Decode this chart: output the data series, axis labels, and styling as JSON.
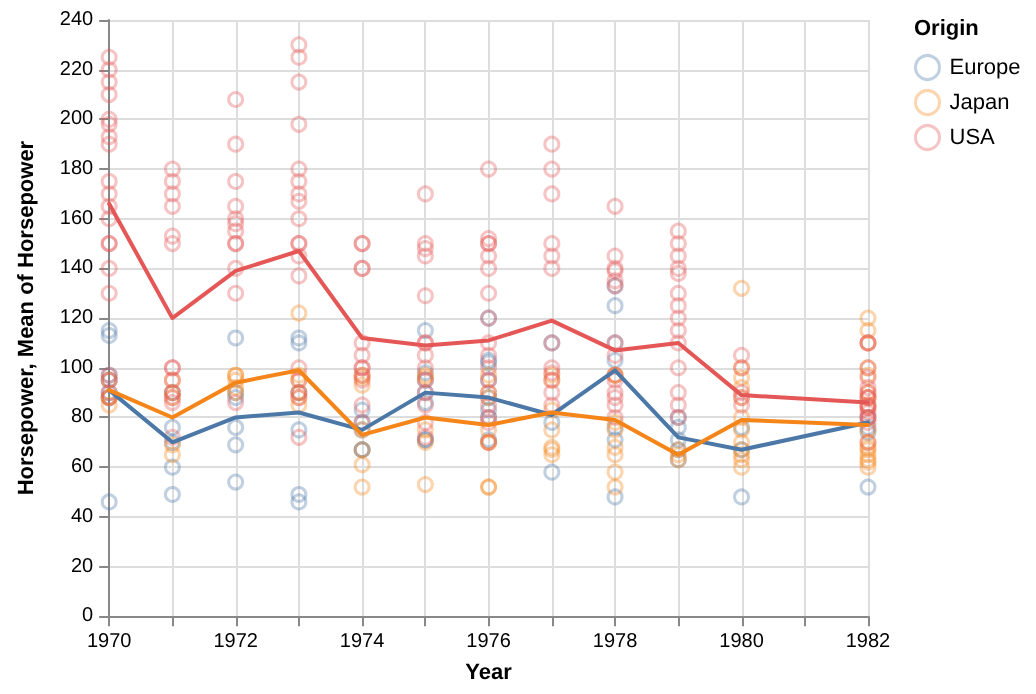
{
  "chart_data": {
    "type": "scatter",
    "xlabel": "Year",
    "ylabel": "Horsepower, Mean of Horsepower",
    "legend_title": "Origin",
    "legend": "right",
    "grid": true,
    "marker": "circle",
    "xlim": [
      1970,
      1982
    ],
    "ylim": [
      0,
      240
    ],
    "xticks": [
      1970,
      {
        "value": 1971,
        "label": null
      },
      1972,
      {
        "value": 1973,
        "label": null
      },
      1974,
      {
        "value": 1975,
        "label": null
      },
      1976,
      {
        "value": 1977,
        "label": null
      },
      1978,
      {
        "value": 1979,
        "label": null
      },
      {
        "value": 1980,
        "label": "1980"
      },
      {
        "value": 1981,
        "label": null
      },
      1982
    ],
    "yticks": [
      0,
      20,
      40,
      60,
      80,
      100,
      120,
      140,
      160,
      180,
      200,
      220,
      240
    ],
    "series": [
      {
        "name": "Europe",
        "color": "#4c78a8",
        "x": [
          1970,
          1970,
          1970,
          1970,
          1970,
          1970,
          1970,
          1971,
          1971,
          1971,
          1971,
          1971,
          1972,
          1972,
          1972,
          1972,
          1972,
          1972,
          1973,
          1973,
          1973,
          1973,
          1973,
          1973,
          1974,
          1974,
          1974,
          1974,
          1974,
          1975,
          1975,
          1975,
          1975,
          1975,
          1975,
          1975,
          1976,
          1976,
          1976,
          1976,
          1976,
          1976,
          1976,
          1976,
          1977,
          1977,
          1977,
          1978,
          1978,
          1978,
          1978,
          1978,
          1978,
          1978,
          1979,
          1979,
          1979,
          1979,
          1979,
          1980,
          1980,
          1980,
          1982,
          1982,
          1982,
          1982
        ],
        "values": [
          115,
          113,
          97,
          95,
          90,
          88,
          46,
          90,
          76,
          70,
          60,
          49,
          112,
          90,
          88,
          76,
          69,
          54,
          112,
          110,
          90,
          75,
          49,
          46,
          83,
          78,
          75,
          67,
          67,
          115,
          98,
          95,
          90,
          86,
          71,
          71,
          120,
          103,
          102,
          95,
          88,
          83,
          80,
          71,
          110,
          78,
          58,
          133,
          125,
          110,
          103,
          76,
          71,
          48,
          80,
          76,
          71,
          67,
          63,
          76,
          67,
          48,
          80,
          76,
          74,
          52
        ]
      },
      {
        "name": "Japan",
        "color": "#f58518",
        "x": [
          1970,
          1970,
          1970,
          1970,
          1971,
          1971,
          1971,
          1971,
          1971,
          1972,
          1972,
          1972,
          1972,
          1972,
          1973,
          1973,
          1973,
          1973,
          1973,
          1973,
          1974,
          1974,
          1974,
          1974,
          1974,
          1974,
          1974,
          1975,
          1975,
          1975,
          1975,
          1975,
          1976,
          1976,
          1976,
          1976,
          1976,
          1976,
          1976,
          1976,
          1977,
          1977,
          1977,
          1977,
          1977,
          1977,
          1977,
          1978,
          1978,
          1978,
          1978,
          1978,
          1978,
          1978,
          1978,
          1979,
          1979,
          1979,
          1980,
          1980,
          1980,
          1980,
          1980,
          1980,
          1980,
          1980,
          1980,
          1980,
          1980,
          1980,
          1982,
          1982,
          1982,
          1982,
          1982,
          1982,
          1982,
          1982,
          1982,
          1982,
          1982,
          1982,
          1982,
          1982,
          1982,
          1982
        ],
        "values": [
          95,
          88,
          88,
          85,
          95,
          90,
          88,
          69,
          65,
          97,
          97,
          95,
          92,
          90,
          122,
          97,
          95,
          90,
          88,
          85,
          97,
          96,
          93,
          75,
          67,
          61,
          52,
          97,
          96,
          75,
          70,
          53,
          97,
          90,
          88,
          75,
          70,
          70,
          52,
          52,
          97,
          95,
          83,
          75,
          68,
          67,
          65,
          97,
          97,
          78,
          75,
          68,
          65,
          58,
          52,
          67,
          65,
          63,
          132,
          100,
          96,
          92,
          88,
          80,
          75,
          70,
          67,
          65,
          63,
          60,
          120,
          115,
          110,
          100,
          97,
          90,
          88,
          85,
          75,
          70,
          68,
          67,
          65,
          63,
          62,
          60
        ]
      },
      {
        "name": "USA",
        "color": "#e45756",
        "x": [
          1970,
          1970,
          1970,
          1970,
          1970,
          1970,
          1970,
          1970,
          1970,
          1970,
          1970,
          1970,
          1970,
          1970,
          1970,
          1970,
          1970,
          1970,
          1970,
          1970,
          1971,
          1971,
          1971,
          1971,
          1971,
          1971,
          1971,
          1971,
          1971,
          1971,
          1971,
          1971,
          1971,
          1972,
          1972,
          1972,
          1972,
          1972,
          1972,
          1972,
          1972,
          1972,
          1972,
          1972,
          1972,
          1973,
          1973,
          1973,
          1973,
          1973,
          1973,
          1973,
          1973,
          1973,
          1973,
          1973,
          1973,
          1973,
          1973,
          1973,
          1973,
          1973,
          1973,
          1974,
          1974,
          1974,
          1974,
          1974,
          1974,
          1974,
          1974,
          1974,
          1974,
          1974,
          1974,
          1975,
          1975,
          1975,
          1975,
          1975,
          1975,
          1975,
          1975,
          1975,
          1975,
          1975,
          1975,
          1975,
          1975,
          1976,
          1976,
          1976,
          1976,
          1976,
          1976,
          1976,
          1976,
          1976,
          1976,
          1976,
          1976,
          1976,
          1976,
          1976,
          1976,
          1976,
          1977,
          1977,
          1977,
          1977,
          1977,
          1977,
          1977,
          1977,
          1977,
          1977,
          1977,
          1977,
          1978,
          1978,
          1978,
          1978,
          1978,
          1978,
          1978,
          1978,
          1978,
          1978,
          1978,
          1978,
          1978,
          1978,
          1979,
          1979,
          1979,
          1979,
          1979,
          1979,
          1979,
          1979,
          1979,
          1979,
          1979,
          1979,
          1979,
          1979,
          1980,
          1980,
          1980,
          1980,
          1980,
          1982,
          1982,
          1982,
          1982,
          1982,
          1982,
          1982,
          1982,
          1982,
          1982,
          1982,
          1982,
          1982,
          1982,
          1982,
          1982
        ],
        "values": [
          225,
          220,
          215,
          210,
          200,
          198,
          193,
          190,
          175,
          170,
          165,
          160,
          150,
          150,
          140,
          130,
          97,
          95,
          90,
          88,
          180,
          175,
          170,
          165,
          153,
          150,
          100,
          100,
          95,
          90,
          88,
          86,
          72,
          208,
          190,
          175,
          165,
          160,
          158,
          155,
          150,
          150,
          140,
          130,
          86,
          230,
          225,
          215,
          198,
          180,
          175,
          170,
          167,
          160,
          150,
          150,
          145,
          137,
          100,
          95,
          90,
          88,
          72,
          150,
          150,
          140,
          140,
          110,
          105,
          100,
          100,
          97,
          95,
          85,
          78,
          170,
          150,
          148,
          145,
          129,
          110,
          110,
          105,
          100,
          95,
          90,
          85,
          78,
          72,
          180,
          152,
          150,
          150,
          145,
          140,
          130,
          120,
          110,
          105,
          100,
          95,
          90,
          85,
          80,
          78,
          70,
          190,
          180,
          170,
          150,
          145,
          140,
          110,
          100,
          98,
          95,
          90,
          85,
          165,
          145,
          140,
          139,
          135,
          133,
          110,
          105,
          97,
          95,
          90,
          88,
          85,
          80,
          155,
          150,
          145,
          140,
          138,
          130,
          125,
          120,
          115,
          110,
          100,
          90,
          85,
          80,
          105,
          100,
          90,
          88,
          85,
          110,
          110,
          100,
          96,
          92,
          90,
          88,
          88,
          85,
          84,
          84,
          82,
          80,
          80,
          78,
          70
        ]
      },
      {
        "type": "line",
        "marker": "none",
        "color": "#4c78a8",
        "x": [
          1970,
          1971,
          1972,
          1973,
          1974,
          1975,
          1976,
          1977,
          1978,
          1979,
          1980,
          1982
        ],
        "values": [
          91,
          70,
          80,
          82,
          75,
          90,
          88,
          81,
          99,
          72,
          67,
          78
        ]
      },
      {
        "type": "line",
        "marker": "none",
        "color": "#f58518",
        "x": [
          1970,
          1971,
          1972,
          1973,
          1974,
          1975,
          1976,
          1977,
          1978,
          1979,
          1980,
          1982
        ],
        "values": [
          91,
          80,
          94,
          99,
          73,
          80,
          77,
          82,
          79,
          65,
          79,
          77
        ]
      },
      {
        "type": "line",
        "marker": "none",
        "color": "#e45756",
        "x": [
          1970,
          1971,
          1972,
          1973,
          1974,
          1975,
          1976,
          1977,
          1978,
          1979,
          1980,
          1982
        ],
        "values": [
          166,
          120,
          139,
          147,
          112,
          109,
          111,
          119,
          107,
          110,
          89,
          86
        ]
      }
    ]
  }
}
